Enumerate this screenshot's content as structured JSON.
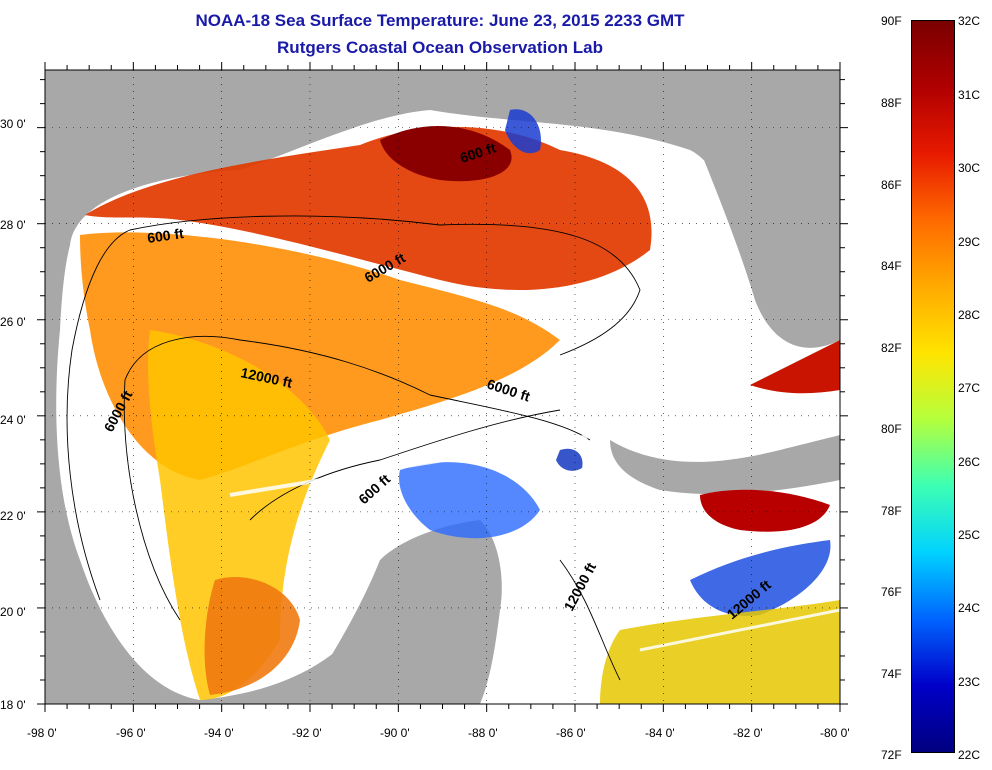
{
  "title": {
    "line1": "NOAA-18 Sea Surface Temperature:  June 23, 2015 2233 GMT",
    "line2": "Rutgers Coastal Ocean Observation Lab"
  },
  "axes": {
    "lat_labels": [
      "30 0'",
      "28 0'",
      "26 0'",
      "24 0'",
      "22 0'",
      "20 0'",
      "18 0'"
    ],
    "lon_labels": [
      "-98 0'",
      "-96 0'",
      "-94 0'",
      "-92 0'",
      "-90 0'",
      "-88 0'",
      "-86 0'",
      "-84 0'",
      "-82 0'",
      "-80 0'"
    ],
    "lat_range": [
      18,
      31.2
    ],
    "lon_range": [
      -98,
      -80
    ]
  },
  "isobaths": {
    "labels": [
      "600 ft",
      "600 ft",
      "6000 ft",
      "12000 ft",
      "6000 ft",
      "6000 ft",
      "600 ft",
      "12000 ft",
      "12000 ft"
    ]
  },
  "colorbar": {
    "fahrenheit": [
      "90F",
      "88F",
      "86F",
      "84F",
      "82F",
      "80F",
      "78F",
      "76F",
      "74F",
      "72F"
    ],
    "celsius": [
      "32C",
      "31C",
      "30C",
      "29C",
      "28C",
      "27C",
      "26C",
      "25C",
      "24C",
      "23C",
      "22C"
    ],
    "colors": [
      "#7a0000",
      "#b00000",
      "#e81a00",
      "#ff6a00",
      "#ffaa00",
      "#ffe400",
      "#b4ff3c",
      "#3cffb4",
      "#00d2ff",
      "#0064ff",
      "#0000c8",
      "#000080"
    ]
  },
  "colors": {
    "land": "#a8a8a8",
    "cloud": "#ffffff",
    "title": "#1a1aa8"
  }
}
